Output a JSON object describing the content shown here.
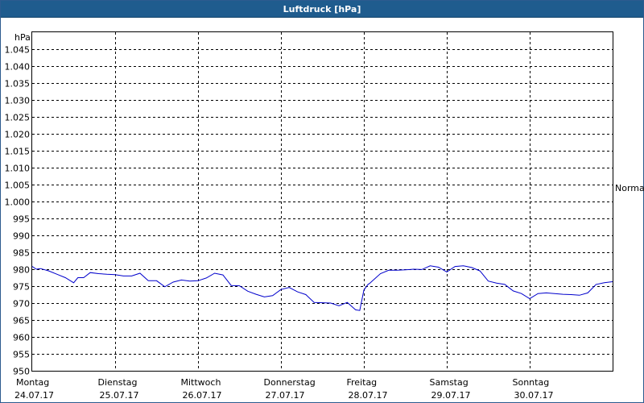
{
  "window": {
    "title": "Luftdruck [hPa]"
  },
  "chart_data": {
    "type": "line",
    "title": "Luftdruck [hPa]",
    "ylabel": "hPa",
    "ylim": [
      950,
      1050
    ],
    "yticks": [
      950,
      955,
      960,
      965,
      970,
      975,
      980,
      985,
      990,
      995,
      1000,
      1005,
      1010,
      1015,
      1020,
      1025,
      1030,
      1035,
      1040,
      1045
    ],
    "ytick_labels": [
      "950",
      "955",
      "960",
      "965",
      "970",
      "975",
      "980",
      "985",
      "990",
      "995",
      "1.000",
      "1.005",
      "1.010",
      "1.015",
      "1.020",
      "1.025",
      "1.030",
      "1.035",
      "1.040",
      "1.045"
    ],
    "xlim": [
      0,
      7
    ],
    "days": [
      {
        "name": "Montag",
        "date": "24.07.17"
      },
      {
        "name": "Dienstag",
        "date": "25.07.17"
      },
      {
        "name": "Mittwoch",
        "date": "26.07.17"
      },
      {
        "name": "Donnerstag",
        "date": "27.07.17"
      },
      {
        "name": "Freitag",
        "date": "28.07.17"
      },
      {
        "name": "Samstag",
        "date": "29.07.17"
      },
      {
        "name": "Sonntag",
        "date": "30.07.17"
      }
    ],
    "reference": {
      "label": "Normal",
      "value": 1004.5
    },
    "grid": true,
    "series": [
      {
        "color": "#0000cc",
        "x": [
          0.0,
          0.05,
          0.1,
          0.2,
          0.3,
          0.4,
          0.5,
          0.55,
          0.62,
          0.7,
          0.8,
          0.9,
          1.0,
          1.1,
          1.2,
          1.3,
          1.4,
          1.5,
          1.6,
          1.7,
          1.8,
          1.9,
          2.0,
          2.1,
          2.2,
          2.3,
          2.4,
          2.5,
          2.6,
          2.7,
          2.8,
          2.9,
          3.0,
          3.1,
          3.2,
          3.3,
          3.4,
          3.5,
          3.6,
          3.7,
          3.8,
          3.9,
          3.95,
          4.0,
          4.05,
          4.07,
          4.1,
          4.2,
          4.3,
          4.4,
          4.5,
          4.6,
          4.7,
          4.8,
          4.9,
          5.0,
          5.1,
          5.2,
          5.3,
          5.4,
          5.5,
          5.6,
          5.7,
          5.8,
          5.9,
          6.0,
          6.1,
          6.2,
          6.3,
          6.4,
          6.5,
          6.6,
          6.7,
          6.8,
          6.9,
          7.0
        ],
        "y": [
          980.8,
          980.0,
          980.2,
          979.5,
          978.5,
          977.5,
          976.0,
          977.5,
          977.5,
          979.0,
          978.7,
          978.5,
          978.4,
          978.0,
          978.0,
          978.8,
          976.6,
          976.6,
          974.8,
          976.2,
          976.8,
          976.5,
          976.6,
          977.4,
          978.8,
          978.3,
          975.2,
          975.1,
          973.5,
          972.6,
          971.8,
          972.2,
          974.0,
          974.6,
          973.3,
          972.5,
          970.2,
          970.1,
          970.0,
          969.2,
          970.2,
          968.0,
          967.8,
          973.8,
          975.5,
          975.8,
          976.5,
          978.7,
          979.7,
          979.7,
          979.8,
          980.0,
          979.9,
          981.0,
          980.6,
          979.2,
          980.8,
          981.0,
          980.5,
          979.5,
          976.5,
          975.9,
          975.5,
          973.6,
          972.8,
          971.3,
          972.8,
          973.0,
          972.8,
          972.6,
          972.5,
          972.3,
          973.0,
          975.5,
          976.0,
          976.3
        ]
      }
    ]
  }
}
